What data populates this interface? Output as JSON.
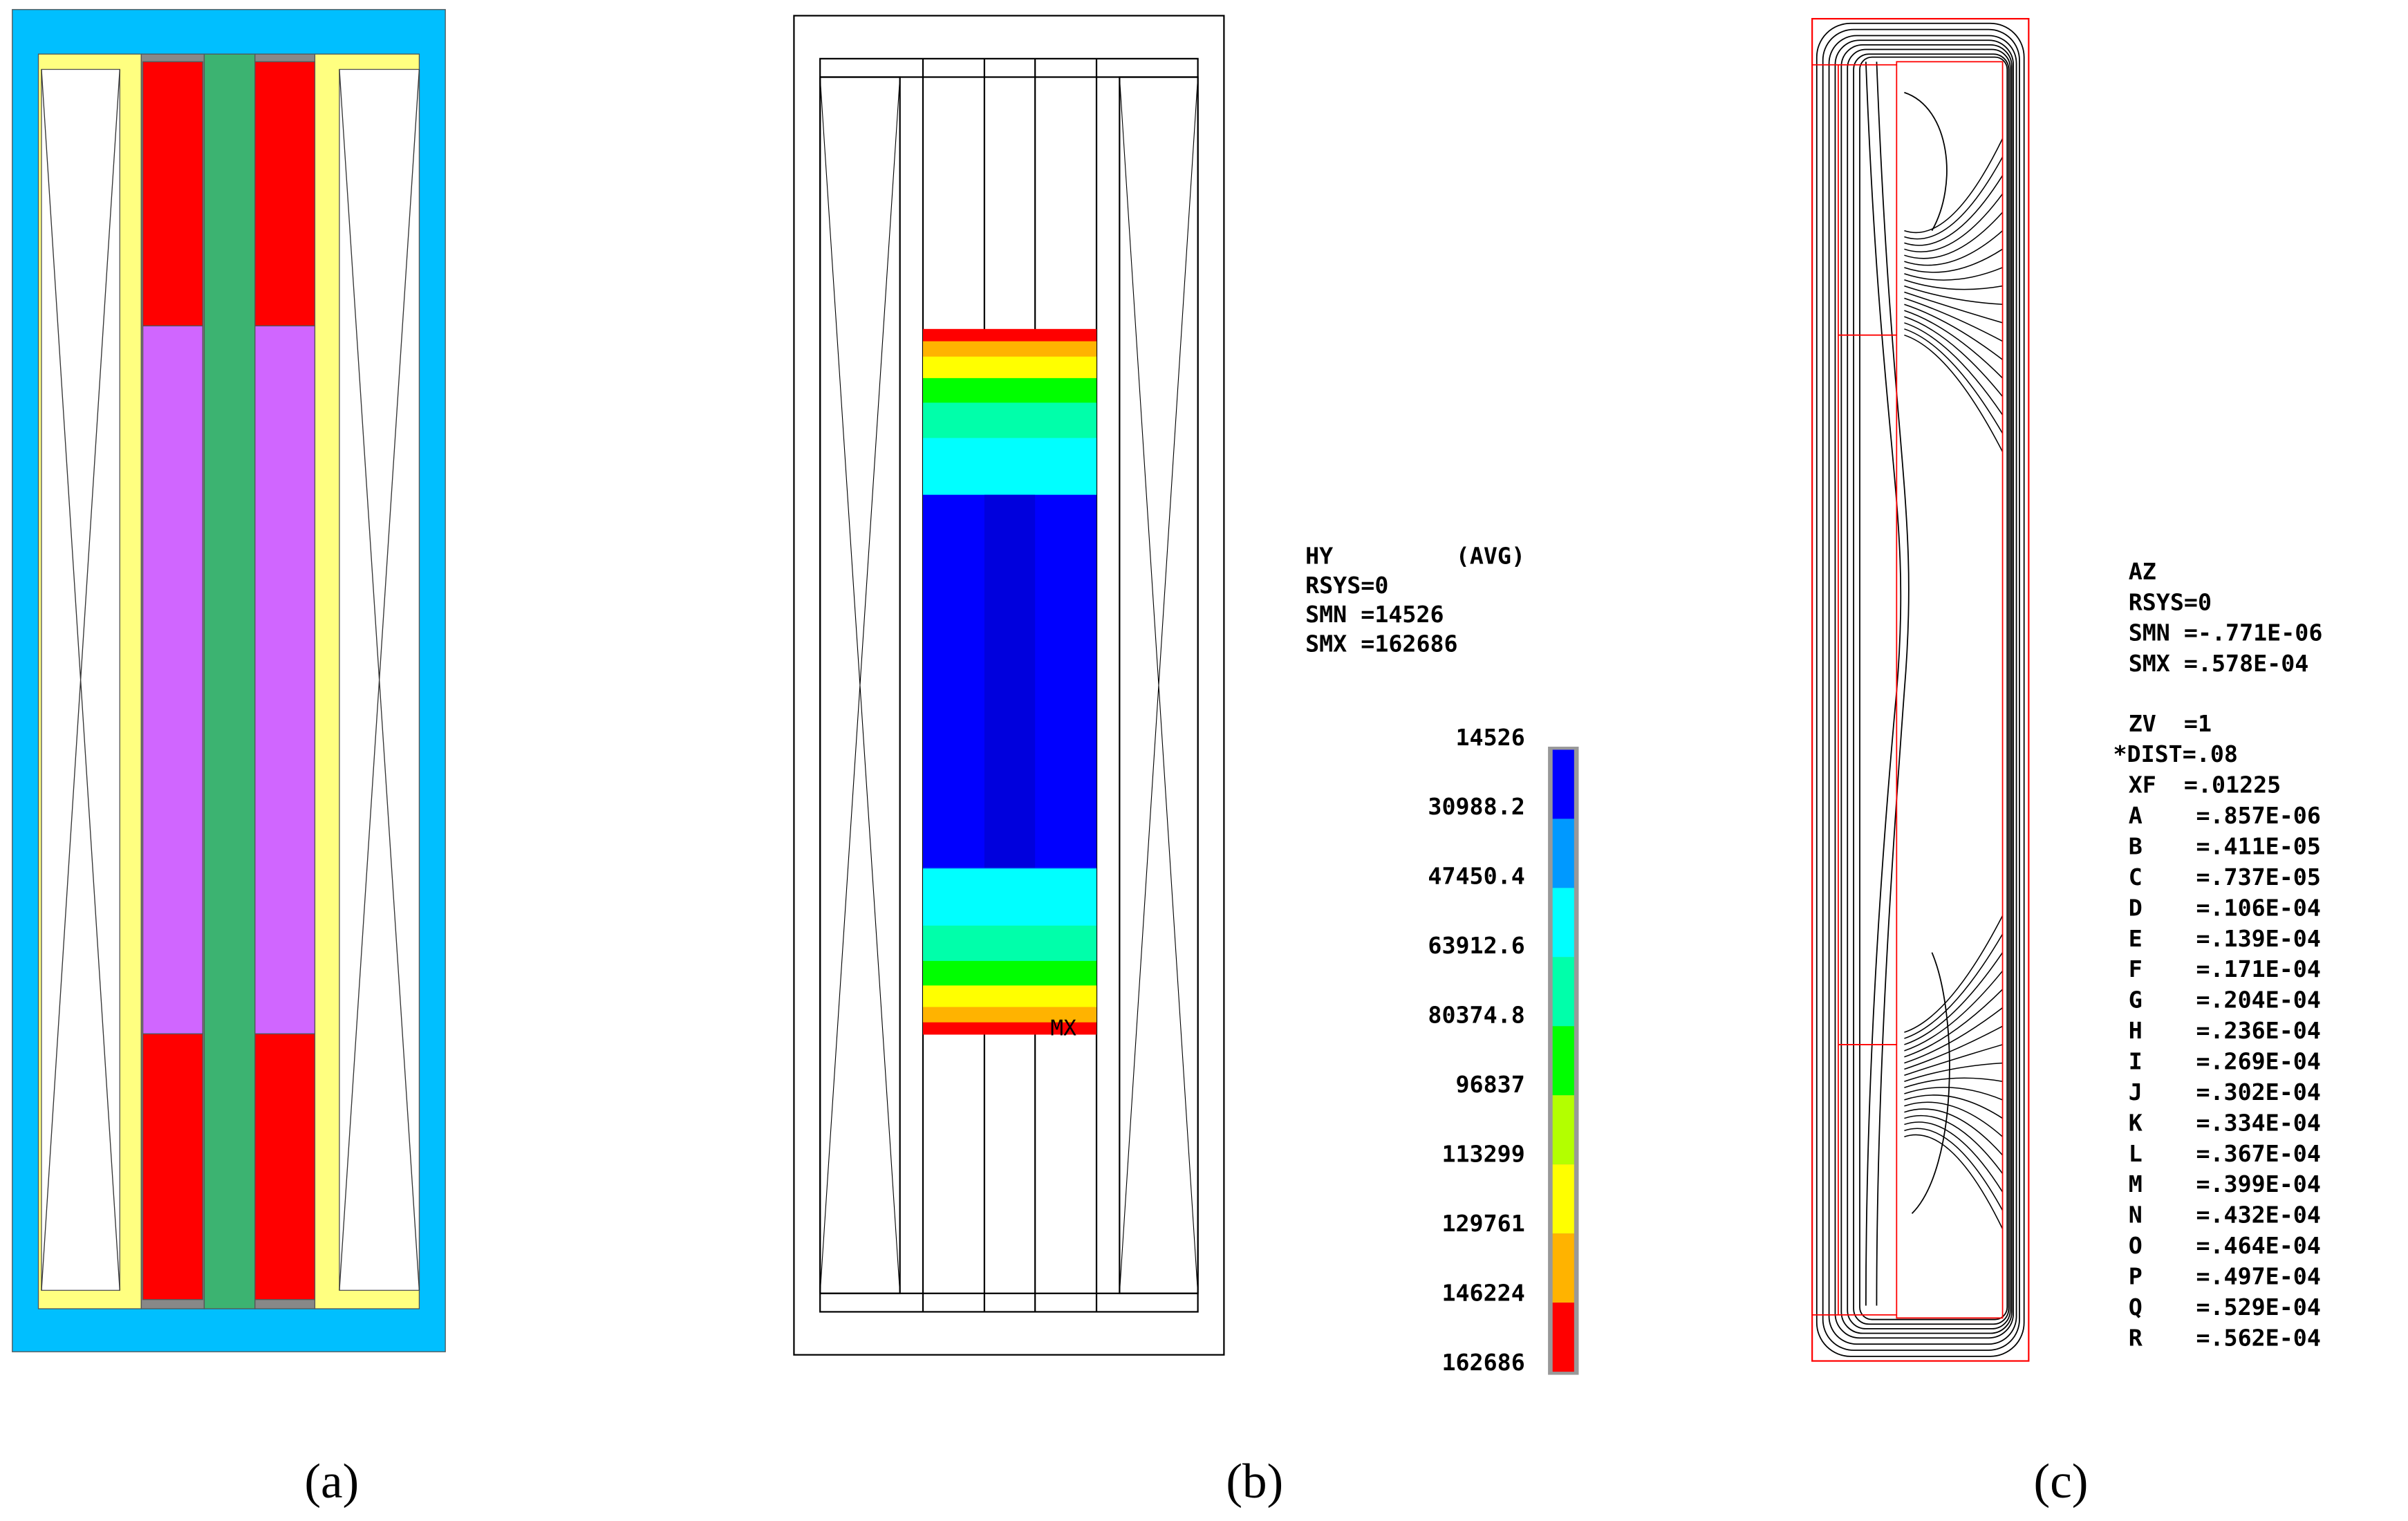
{
  "captions": [
    "(a)",
    "(b)",
    "(c)"
  ],
  "panel_b": {
    "header": [
      "HY",
      "(AVG)"
    ],
    "info": [
      "RSYS=0",
      "SMN =14526",
      "SMX =162686"
    ],
    "marker": "MX",
    "legend": [
      "14526",
      "30988.2",
      "47450.4",
      "63912.6",
      "80374.8",
      "96837",
      "113299",
      "129761",
      "146224",
      "162686"
    ]
  },
  "panel_c": {
    "info": [
      "AZ",
      "RSYS=0",
      "SMN =-.771E-06",
      "SMX =.578E-04"
    ],
    "settings": [
      "ZV  =1",
      "*DIST=.08",
      "XF  =.01225"
    ],
    "contours": [
      [
        "A",
        "=.857E-06"
      ],
      [
        "B",
        "=.411E-05"
      ],
      [
        "C",
        "=.737E-05"
      ],
      [
        "D",
        "=.106E-04"
      ],
      [
        "E",
        "=.139E-04"
      ],
      [
        "F",
        "=.171E-04"
      ],
      [
        "G",
        "=.204E-04"
      ],
      [
        "H",
        "=.236E-04"
      ],
      [
        "I",
        "=.269E-04"
      ],
      [
        "J",
        "=.302E-04"
      ],
      [
        "K",
        "=.334E-04"
      ],
      [
        "L",
        "=.367E-04"
      ],
      [
        "M",
        "=.399E-04"
      ],
      [
        "N",
        "=.432E-04"
      ],
      [
        "O",
        "=.464E-04"
      ],
      [
        "P",
        "=.497E-04"
      ],
      [
        "Q",
        "=.529E-04"
      ],
      [
        "R",
        "=.562E-04"
      ]
    ]
  }
}
